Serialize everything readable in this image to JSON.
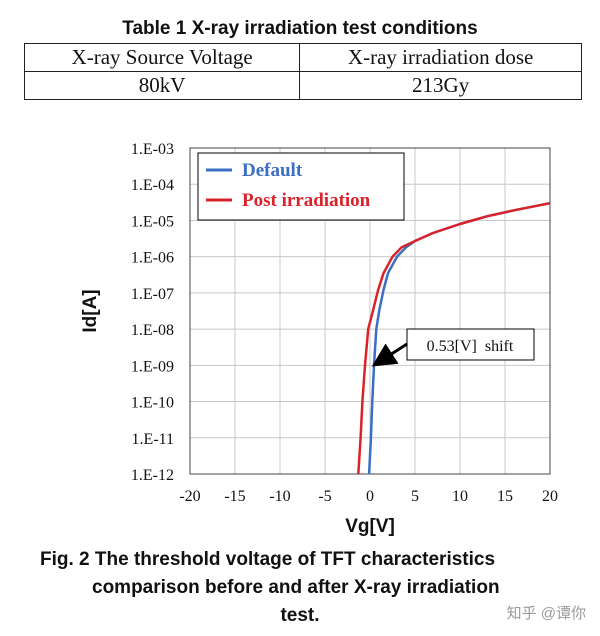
{
  "table": {
    "title": "Table 1 X-ray irradiation test conditions",
    "headers": [
      "X-ray Source Voltage",
      "X-ray irradiation dose"
    ],
    "row": [
      "80kV",
      "213Gy"
    ]
  },
  "chart_data": {
    "type": "line",
    "xlabel": "Vg[V]",
    "ylabel": "Id[A]",
    "xlim": [
      -20,
      20
    ],
    "ylim_log10": [
      -12,
      -3
    ],
    "y_scale": "log",
    "x_ticks": [
      -20,
      -15,
      -10,
      -5,
      0,
      5,
      10,
      15,
      20
    ],
    "y_tick_labels": [
      "1.E-03",
      "1.E-04",
      "1.E-05",
      "1.E-06",
      "1.E-07",
      "1.E-08",
      "1.E-09",
      "1.E-10",
      "1.E-11",
      "1.E-12"
    ],
    "grid": true,
    "legend": "top-left",
    "series": [
      {
        "name": "Default",
        "color": "#3a6fc4",
        "x": [
          -0.1,
          0.1,
          0.25,
          0.45,
          0.7,
          1.0,
          1.5,
          2.0,
          3.0,
          4.0,
          5.0,
          7.0,
          10.0,
          13.0,
          16.0,
          20.0
        ],
        "y": [
          1e-12,
          1e-11,
          1e-10,
          1e-09,
          1e-08,
          3e-08,
          1.2e-07,
          3.5e-07,
          1e-06,
          1.8e-06,
          2.7e-06,
          4.5e-06,
          8e-06,
          1.3e-05,
          1.9e-05,
          3e-05
        ]
      },
      {
        "name": "Post irradiation",
        "color": "#d9232a",
        "x": [
          -1.3,
          -1.05,
          -0.85,
          -0.55,
          -0.2,
          0.3,
          0.9,
          1.5,
          2.5,
          3.5,
          5.0,
          7.0,
          10.0,
          13.0,
          16.0,
          20.0
        ],
        "y": [
          1e-12,
          1e-11,
          1e-10,
          1e-09,
          1e-08,
          3e-08,
          1.2e-07,
          3.5e-07,
          1e-06,
          1.8e-06,
          2.7e-06,
          4.5e-06,
          8e-06,
          1.3e-05,
          1.9e-05,
          3e-05
        ]
      }
    ],
    "annotation": {
      "text": "0.53[V]  shift",
      "target": [
        0.1,
        1e-09
      ]
    }
  },
  "caption": {
    "line1": "Fig. 2 The threshold voltage of TFT characteristics",
    "line2": "comparison before and after X-ray irradiation",
    "line3": "test."
  },
  "watermark": "知乎 @谭你"
}
